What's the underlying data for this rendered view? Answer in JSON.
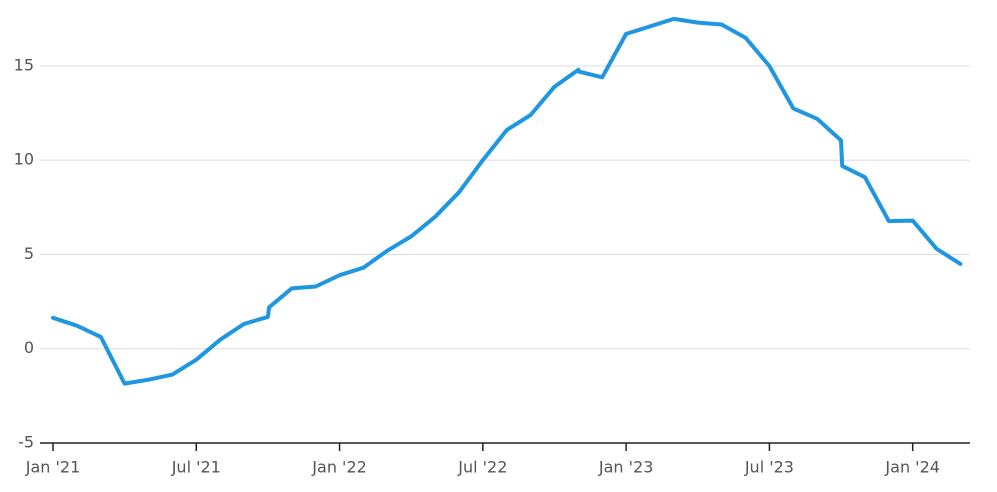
{
  "chart_data": {
    "type": "line",
    "x": [
      0,
      1,
      2,
      3,
      4,
      5,
      6,
      7,
      8,
      9,
      9.05,
      10,
      11,
      12,
      13,
      14,
      15,
      16,
      17,
      18,
      19,
      20,
      21,
      22,
      22.02,
      23,
      24,
      25,
      26,
      27,
      28,
      29,
      30,
      31,
      32,
      33,
      33.05,
      34,
      35,
      36,
      37,
      38
    ],
    "series": [
      {
        "color": "#1e96e1",
        "values": [
          1.64,
          1.22,
          0.63,
          -1.85,
          -1.64,
          -1.37,
          -0.58,
          0.48,
          1.32,
          1.69,
          2.2,
          3.2,
          3.3,
          3.9,
          4.3,
          5.2,
          5.96,
          7.0,
          8.3,
          10.0,
          11.6,
          12.4,
          13.9,
          14.8,
          14.7,
          14.4,
          16.7,
          17.1,
          17.5,
          17.3,
          17.2,
          16.5,
          15.0,
          12.75,
          12.2,
          11.05,
          9.7,
          9.1,
          6.77,
          6.8,
          5.3,
          4.5
        ]
      }
    ],
    "xlim": [
      0,
      38.4
    ],
    "xticks": [
      {
        "value": 0,
        "label": "Jan '21"
      },
      {
        "value": 6,
        "label": "Jul '21"
      },
      {
        "value": 12,
        "label": "Jan '22"
      },
      {
        "value": 18,
        "label": "Jul '22"
      },
      {
        "value": 24,
        "label": "Jan '23"
      },
      {
        "value": 30,
        "label": "Jul '23"
      },
      {
        "value": 36,
        "label": "Jan '24"
      }
    ],
    "ylim": [
      -5,
      18.5
    ],
    "yticks": [
      -5,
      0,
      5,
      10,
      15
    ],
    "grid": true
  }
}
